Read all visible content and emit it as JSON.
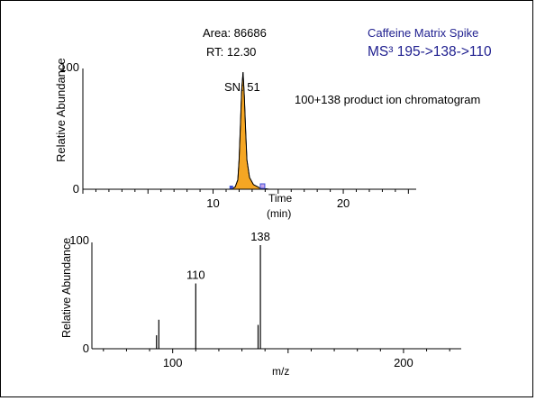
{
  "colors": {
    "frame": "#000000",
    "peak_fill": "#f5a623",
    "heading_text": "#1f1f8f",
    "axis": "#000000",
    "marker": "#3b4fd8"
  },
  "heading": {
    "line1": "Caffeine Matrix Spike",
    "line2": "MS³    195->138->110"
  },
  "chart_data": [
    {
      "type": "line",
      "title": "100+138 product ion chromatogram",
      "xlabel": "Time",
      "xunit": "(min)",
      "ylabel": "Relative Abundance",
      "xlim": [
        0,
        25.6
      ],
      "ylim": [
        0,
        100
      ],
      "xticks": [
        10,
        20
      ],
      "yticks": [
        0,
        100
      ],
      "series": [
        {
          "x": [
            0,
            5,
            10,
            11.4,
            11.7,
            11.9,
            12.0,
            12.1,
            12.2,
            12.3,
            12.4,
            12.5,
            12.6,
            12.8,
            13.1,
            13.6,
            14.3,
            15,
            20,
            25.6
          ],
          "y": [
            0,
            0,
            0,
            0,
            2,
            8,
            25,
            55,
            85,
            100,
            80,
            50,
            25,
            10,
            4,
            1,
            0,
            0,
            0,
            0
          ]
        }
      ],
      "filled_peak": {
        "start": 11.4,
        "end": 14.3
      },
      "annotations": {
        "area": "Area: 86686",
        "rt": "RT: 12.30",
        "sn": "SN: 51"
      }
    },
    {
      "type": "bar",
      "xlabel": "m/z",
      "ylabel": "Relative Abundance",
      "xlim": [
        65,
        225
      ],
      "ylim": [
        0,
        100
      ],
      "xticks": [
        100,
        200
      ],
      "yticks": [
        0,
        100
      ],
      "peaks": [
        {
          "mz": 93,
          "value": 13
        },
        {
          "mz": 94,
          "value": 28
        },
        {
          "mz": 110,
          "value": 63,
          "label": "110"
        },
        {
          "mz": 137,
          "value": 23
        },
        {
          "mz": 138,
          "value": 100,
          "label": "138"
        }
      ]
    }
  ]
}
